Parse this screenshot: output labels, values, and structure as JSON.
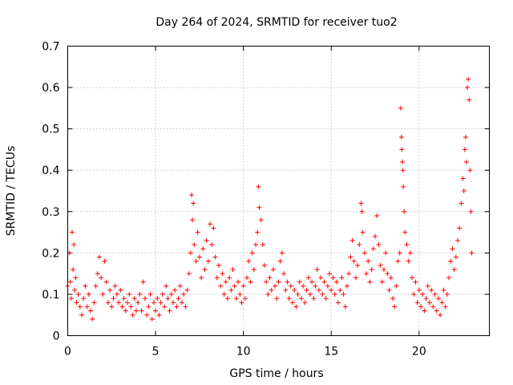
{
  "chart_data": {
    "type": "scatter",
    "title": "Day 264 of 2024, SRMTID for receiver tuo2",
    "xlabel": "GPS time / hours",
    "ylabel": "SRMTID / TECUs",
    "xlim": [
      0,
      24
    ],
    "ylim": [
      0,
      0.7
    ],
    "xticks": [
      0,
      5,
      10,
      15,
      20
    ],
    "yticks": [
      0,
      0.1,
      0.2,
      0.3,
      0.4,
      0.5,
      0.6,
      0.7
    ],
    "xtick_labels": [
      "0",
      "5",
      "10",
      "15",
      "20"
    ],
    "ytick_labels": [
      "0",
      "0.1",
      "0.2",
      "0.3",
      "0.4",
      "0.5",
      "0.6",
      "0.7"
    ],
    "grid": true,
    "marker": "+",
    "color": "#ff0000",
    "series": [
      {
        "name": "SRMTID",
        "points": [
          [
            0.0,
            0.12
          ],
          [
            0.1,
            0.2
          ],
          [
            0.15,
            0.13
          ],
          [
            0.2,
            0.09
          ],
          [
            0.25,
            0.25
          ],
          [
            0.3,
            0.16
          ],
          [
            0.35,
            0.22
          ],
          [
            0.4,
            0.11
          ],
          [
            0.45,
            0.14
          ],
          [
            0.5,
            0.08
          ],
          [
            0.6,
            0.1
          ],
          [
            0.7,
            0.07
          ],
          [
            0.8,
            0.05
          ],
          [
            0.9,
            0.09
          ],
          [
            1.0,
            0.12
          ],
          [
            1.1,
            0.07
          ],
          [
            1.2,
            0.1
          ],
          [
            1.3,
            0.06
          ],
          [
            1.4,
            0.04
          ],
          [
            1.5,
            0.08
          ],
          [
            1.6,
            0.12
          ],
          [
            1.7,
            0.15
          ],
          [
            1.8,
            0.19
          ],
          [
            1.9,
            0.14
          ],
          [
            2.0,
            0.1
          ],
          [
            2.1,
            0.18
          ],
          [
            2.2,
            0.13
          ],
          [
            2.3,
            0.08
          ],
          [
            2.4,
            0.11
          ],
          [
            2.5,
            0.07
          ],
          [
            2.6,
            0.09
          ],
          [
            2.7,
            0.12
          ],
          [
            2.8,
            0.1
          ],
          [
            2.9,
            0.08
          ],
          [
            3.0,
            0.11
          ],
          [
            3.1,
            0.07
          ],
          [
            3.2,
            0.09
          ],
          [
            3.3,
            0.06
          ],
          [
            3.4,
            0.08
          ],
          [
            3.5,
            0.1
          ],
          [
            3.6,
            0.07
          ],
          [
            3.7,
            0.05
          ],
          [
            3.8,
            0.09
          ],
          [
            3.9,
            0.06
          ],
          [
            4.0,
            0.08
          ],
          [
            4.1,
            0.1
          ],
          [
            4.2,
            0.06
          ],
          [
            4.3,
            0.13
          ],
          [
            4.4,
            0.09
          ],
          [
            4.5,
            0.05
          ],
          [
            4.6,
            0.07
          ],
          [
            4.7,
            0.1
          ],
          [
            4.8,
            0.04
          ],
          [
            4.9,
            0.08
          ],
          [
            5.0,
            0.06
          ],
          [
            5.1,
            0.09
          ],
          [
            5.2,
            0.05
          ],
          [
            5.3,
            0.08
          ],
          [
            5.4,
            0.1
          ],
          [
            5.5,
            0.07
          ],
          [
            5.6,
            0.12
          ],
          [
            5.7,
            0.09
          ],
          [
            5.8,
            0.06
          ],
          [
            5.9,
            0.1
          ],
          [
            6.0,
            0.08
          ],
          [
            6.1,
            0.11
          ],
          [
            6.2,
            0.07
          ],
          [
            6.3,
            0.09
          ],
          [
            6.4,
            0.12
          ],
          [
            6.5,
            0.08
          ],
          [
            6.6,
            0.1
          ],
          [
            6.7,
            0.07
          ],
          [
            6.8,
            0.11
          ],
          [
            6.9,
            0.15
          ],
          [
            7.0,
            0.2
          ],
          [
            7.05,
            0.34
          ],
          [
            7.1,
            0.28
          ],
          [
            7.15,
            0.32
          ],
          [
            7.2,
            0.22
          ],
          [
            7.3,
            0.18
          ],
          [
            7.4,
            0.25
          ],
          [
            7.5,
            0.19
          ],
          [
            7.6,
            0.14
          ],
          [
            7.7,
            0.21
          ],
          [
            7.8,
            0.16
          ],
          [
            7.9,
            0.23
          ],
          [
            8.0,
            0.18
          ],
          [
            8.1,
            0.27
          ],
          [
            8.2,
            0.22
          ],
          [
            8.3,
            0.26
          ],
          [
            8.4,
            0.19
          ],
          [
            8.5,
            0.14
          ],
          [
            8.6,
            0.17
          ],
          [
            8.7,
            0.12
          ],
          [
            8.8,
            0.15
          ],
          [
            8.9,
            0.1
          ],
          [
            9.0,
            0.13
          ],
          [
            9.1,
            0.09
          ],
          [
            9.2,
            0.14
          ],
          [
            9.3,
            0.11
          ],
          [
            9.4,
            0.16
          ],
          [
            9.5,
            0.12
          ],
          [
            9.6,
            0.09
          ],
          [
            9.7,
            0.13
          ],
          [
            9.8,
            0.1
          ],
          [
            9.9,
            0.08
          ],
          [
            10.0,
            0.12
          ],
          [
            10.1,
            0.09
          ],
          [
            10.2,
            0.14
          ],
          [
            10.3,
            0.18
          ],
          [
            10.4,
            0.13
          ],
          [
            10.5,
            0.2
          ],
          [
            10.6,
            0.16
          ],
          [
            10.7,
            0.22
          ],
          [
            10.8,
            0.25
          ],
          [
            10.85,
            0.36
          ],
          [
            10.9,
            0.31
          ],
          [
            11.0,
            0.28
          ],
          [
            11.1,
            0.22
          ],
          [
            11.2,
            0.17
          ],
          [
            11.3,
            0.13
          ],
          [
            11.4,
            0.1
          ],
          [
            11.5,
            0.14
          ],
          [
            11.6,
            0.11
          ],
          [
            11.7,
            0.16
          ],
          [
            11.8,
            0.12
          ],
          [
            11.9,
            0.09
          ],
          [
            12.0,
            0.13
          ],
          [
            12.1,
            0.18
          ],
          [
            12.2,
            0.2
          ],
          [
            12.3,
            0.15
          ],
          [
            12.4,
            0.11
          ],
          [
            12.5,
            0.13
          ],
          [
            12.6,
            0.09
          ],
          [
            12.7,
            0.12
          ],
          [
            12.8,
            0.08
          ],
          [
            12.9,
            0.11
          ],
          [
            13.0,
            0.07
          ],
          [
            13.1,
            0.1
          ],
          [
            13.2,
            0.13
          ],
          [
            13.3,
            0.09
          ],
          [
            13.4,
            0.12
          ],
          [
            13.5,
            0.08
          ],
          [
            13.6,
            0.11
          ],
          [
            13.7,
            0.14
          ],
          [
            13.8,
            0.1
          ],
          [
            13.9,
            0.13
          ],
          [
            14.0,
            0.09
          ],
          [
            14.1,
            0.12
          ],
          [
            14.2,
            0.16
          ],
          [
            14.3,
            0.11
          ],
          [
            14.4,
            0.14
          ],
          [
            14.5,
            0.1
          ],
          [
            14.6,
            0.13
          ],
          [
            14.7,
            0.09
          ],
          [
            14.8,
            0.12
          ],
          [
            14.9,
            0.15
          ],
          [
            15.0,
            0.11
          ],
          [
            15.1,
            0.14
          ],
          [
            15.2,
            0.1
          ],
          [
            15.3,
            0.13
          ],
          [
            15.4,
            0.08
          ],
          [
            15.5,
            0.11
          ],
          [
            15.6,
            0.14
          ],
          [
            15.7,
            0.1
          ],
          [
            15.8,
            0.07
          ],
          [
            15.9,
            0.12
          ],
          [
            16.0,
            0.15
          ],
          [
            16.1,
            0.19
          ],
          [
            16.2,
            0.23
          ],
          [
            16.3,
            0.18
          ],
          [
            16.4,
            0.14
          ],
          [
            16.5,
            0.17
          ],
          [
            16.6,
            0.22
          ],
          [
            16.7,
            0.32
          ],
          [
            16.75,
            0.3
          ],
          [
            16.8,
            0.25
          ],
          [
            16.9,
            0.2
          ],
          [
            17.0,
            0.15
          ],
          [
            17.1,
            0.18
          ],
          [
            17.2,
            0.13
          ],
          [
            17.3,
            0.16
          ],
          [
            17.4,
            0.21
          ],
          [
            17.5,
            0.24
          ],
          [
            17.6,
            0.29
          ],
          [
            17.7,
            0.22
          ],
          [
            17.8,
            0.17
          ],
          [
            17.9,
            0.13
          ],
          [
            18.0,
            0.16
          ],
          [
            18.1,
            0.2
          ],
          [
            18.2,
            0.15
          ],
          [
            18.3,
            0.11
          ],
          [
            18.4,
            0.14
          ],
          [
            18.5,
            0.09
          ],
          [
            18.6,
            0.07
          ],
          [
            18.7,
            0.12
          ],
          [
            18.8,
            0.18
          ],
          [
            18.9,
            0.2
          ],
          [
            18.95,
            0.55
          ],
          [
            19.0,
            0.48
          ],
          [
            19.02,
            0.45
          ],
          [
            19.05,
            0.42
          ],
          [
            19.08,
            0.4
          ],
          [
            19.1,
            0.36
          ],
          [
            19.15,
            0.3
          ],
          [
            19.2,
            0.25
          ],
          [
            19.3,
            0.22
          ],
          [
            19.4,
            0.18
          ],
          [
            19.5,
            0.2
          ],
          [
            19.6,
            0.14
          ],
          [
            19.7,
            0.1
          ],
          [
            19.8,
            0.13
          ],
          [
            19.9,
            0.08
          ],
          [
            20.0,
            0.11
          ],
          [
            20.1,
            0.07
          ],
          [
            20.2,
            0.1
          ],
          [
            20.3,
            0.06
          ],
          [
            20.4,
            0.09
          ],
          [
            20.5,
            0.12
          ],
          [
            20.6,
            0.08
          ],
          [
            20.7,
            0.11
          ],
          [
            20.8,
            0.07
          ],
          [
            20.9,
            0.1
          ],
          [
            21.0,
            0.06
          ],
          [
            21.1,
            0.09
          ],
          [
            21.2,
            0.05
          ],
          [
            21.3,
            0.08
          ],
          [
            21.4,
            0.11
          ],
          [
            21.5,
            0.07
          ],
          [
            21.6,
            0.1
          ],
          [
            21.7,
            0.14
          ],
          [
            21.8,
            0.18
          ],
          [
            21.9,
            0.21
          ],
          [
            22.0,
            0.16
          ],
          [
            22.1,
            0.19
          ],
          [
            22.2,
            0.23
          ],
          [
            22.3,
            0.26
          ],
          [
            22.4,
            0.32
          ],
          [
            22.5,
            0.38
          ],
          [
            22.55,
            0.35
          ],
          [
            22.6,
            0.45
          ],
          [
            22.65,
            0.48
          ],
          [
            22.7,
            0.42
          ],
          [
            22.75,
            0.6
          ],
          [
            22.8,
            0.62
          ],
          [
            22.85,
            0.57
          ],
          [
            22.9,
            0.4
          ],
          [
            22.95,
            0.3
          ],
          [
            23.0,
            0.2
          ]
        ]
      }
    ]
  }
}
